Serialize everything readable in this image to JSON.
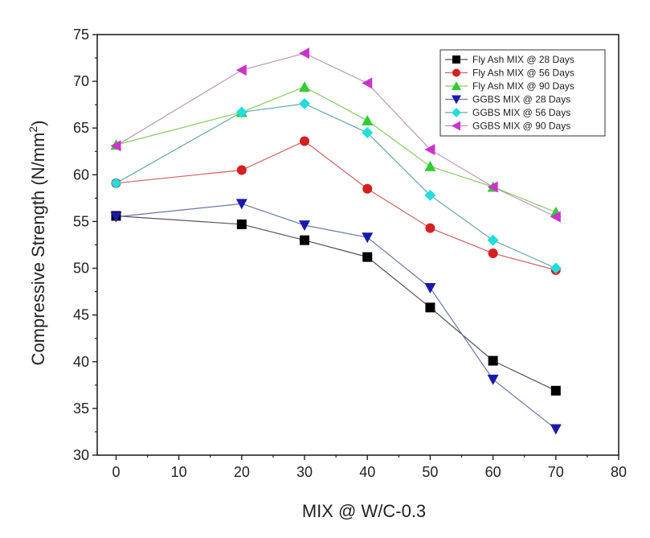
{
  "chart_data": {
    "type": "line",
    "xlabel": "MIX @ W/C-0.3",
    "ylabel_main": "Compressive Strength (N/mm",
    "ylabel_sup": "2",
    "ylabel_end": ")",
    "xlim": [
      -3,
      80
    ],
    "ylim": [
      30,
      75
    ],
    "x_ticks": [
      0,
      10,
      20,
      30,
      40,
      50,
      60,
      70,
      80
    ],
    "y_ticks": [
      30,
      35,
      40,
      45,
      50,
      55,
      60,
      65,
      70,
      75
    ],
    "x_tick_labels": [
      "0",
      "10",
      "20",
      "30",
      "40",
      "50",
      "60",
      "70",
      "80"
    ],
    "y_tick_labels": [
      "30",
      "35",
      "40",
      "45",
      "50",
      "55",
      "60",
      "65",
      "70",
      "75"
    ],
    "x": [
      0,
      20,
      30,
      40,
      50,
      60,
      70
    ],
    "grid": false,
    "legend_position": "top-right",
    "series": [
      {
        "name": "Fly Ash MIX @ 28 Days",
        "marker": "square",
        "color": "#000000",
        "line_color": "#555555",
        "values": [
          55.6,
          54.7,
          53.0,
          51.2,
          45.8,
          40.1,
          36.9
        ]
      },
      {
        "name": "Fly Ash MIX @ 56 Days",
        "marker": "circle",
        "color": "#d42020",
        "line_color": "#d46060",
        "values": [
          59.1,
          60.5,
          63.6,
          58.5,
          54.3,
          51.6,
          49.8
        ]
      },
      {
        "name": "Fly Ash MIX @ 90 Days",
        "marker": "triangle-up",
        "color": "#33cc33",
        "line_color": "#88cc66",
        "values": [
          63.2,
          66.7,
          69.4,
          65.8,
          60.9,
          58.7,
          56.0
        ]
      },
      {
        "name": "GGBS MIX @ 28 Days",
        "marker": "triangle-down",
        "color": "#1a1aaa",
        "line_color": "#6677aa",
        "values": [
          55.5,
          56.9,
          54.6,
          53.3,
          47.9,
          38.1,
          32.8
        ]
      },
      {
        "name": "GGBS MIX @ 56 Days",
        "marker": "diamond",
        "color": "#22dddd",
        "line_color": "#66aaaa",
        "values": [
          59.1,
          66.7,
          67.6,
          64.5,
          57.8,
          53.0,
          50.0
        ]
      },
      {
        "name": "GGBS MIX @ 90 Days",
        "marker": "triangle-left",
        "color": "#cc33cc",
        "line_color": "#bb99bb",
        "values": [
          63.1,
          71.2,
          73.0,
          69.8,
          62.7,
          58.7,
          55.5
        ]
      }
    ]
  }
}
